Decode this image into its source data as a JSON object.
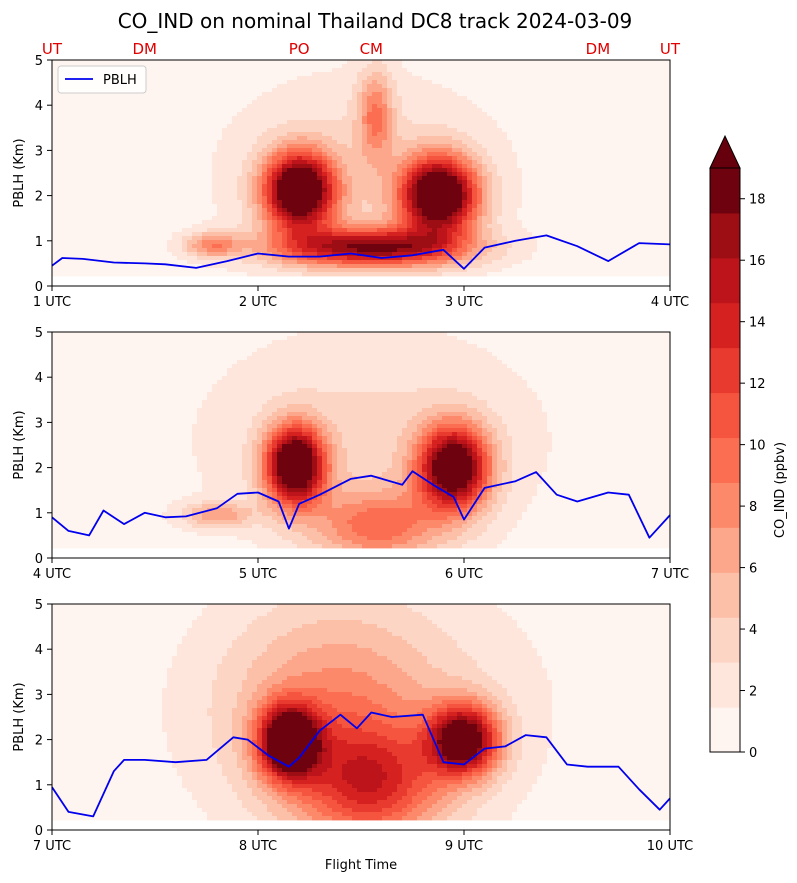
{
  "title": "CO_IND on nominal Thailand DC8 track 2024-03-09",
  "locations": [
    {
      "label": "UT",
      "time": 1.0
    },
    {
      "label": "DM",
      "time": 1.45
    },
    {
      "label": "PO",
      "time": 2.2
    },
    {
      "label": "CM",
      "time": 2.55
    },
    {
      "label": "DM",
      "time": 3.65
    },
    {
      "label": "UT",
      "time": 4.0
    }
  ],
  "colorbar": {
    "label": "CO_IND (ppbv)",
    "ticks": [
      "0",
      "2",
      "4",
      "6",
      "8",
      "10",
      "12",
      "14",
      "16",
      "18"
    ],
    "min": 0,
    "max": 19,
    "extend": "max"
  },
  "legend": {
    "label": "PBLH",
    "color": "#0000ee"
  },
  "xlabel": "Flight Time",
  "ylabel": "PBLH (Km)",
  "chart_data": [
    {
      "type": "heatmap",
      "xlim": [
        1,
        4
      ],
      "ylim": [
        0,
        5
      ],
      "xticks": [
        "1 UTC",
        "2 UTC",
        "3 UTC",
        "4 UTC"
      ],
      "yticks": [
        "0",
        "1",
        "2",
        "3",
        "4",
        "5"
      ],
      "ylabel": "PBLH (Km)",
      "legend_position": "top-left",
      "pblh_series": {
        "name": "PBLH",
        "x": [
          1.0,
          1.05,
          1.15,
          1.3,
          1.45,
          1.55,
          1.7,
          1.85,
          2.0,
          2.15,
          2.3,
          2.45,
          2.6,
          2.75,
          2.9,
          3.0,
          3.1,
          3.25,
          3.4,
          3.55,
          3.7,
          3.85,
          4.0
        ],
        "y": [
          0.45,
          0.62,
          0.6,
          0.52,
          0.5,
          0.48,
          0.4,
          0.55,
          0.72,
          0.65,
          0.65,
          0.72,
          0.62,
          0.68,
          0.8,
          0.38,
          0.85,
          1.0,
          1.12,
          0.88,
          0.55,
          0.95,
          0.92
        ]
      },
      "blobs": [
        {
          "x": 2.2,
          "y": 2.1,
          "sx": 0.12,
          "sy": 0.6,
          "v": 22
        },
        {
          "x": 2.88,
          "y": 2.0,
          "sx": 0.13,
          "sy": 0.6,
          "v": 22
        },
        {
          "x": 2.55,
          "y": 0.85,
          "sx": 0.32,
          "sy": 0.3,
          "v": 16
        },
        {
          "x": 2.57,
          "y": 3.8,
          "sx": 0.06,
          "sy": 0.7,
          "v": 7
        },
        {
          "x": 1.78,
          "y": 0.9,
          "sx": 0.1,
          "sy": 0.2,
          "v": 7
        },
        {
          "x": 2.5,
          "y": 2.5,
          "sx": 0.5,
          "sy": 1.6,
          "v": 3
        }
      ]
    },
    {
      "type": "heatmap",
      "xlim": [
        4,
        7
      ],
      "ylim": [
        0,
        5
      ],
      "xticks": [
        "4 UTC",
        "5 UTC",
        "6 UTC",
        "7 UTC"
      ],
      "yticks": [
        "0",
        "1",
        "2",
        "3",
        "4",
        "5"
      ],
      "ylabel": "PBLH (Km)",
      "pblh_series": {
        "name": "PBLH",
        "x": [
          4.0,
          4.08,
          4.18,
          4.25,
          4.35,
          4.45,
          4.55,
          4.65,
          4.8,
          4.9,
          5.0,
          5.1,
          5.15,
          5.2,
          5.3,
          5.45,
          5.55,
          5.7,
          5.75,
          5.85,
          5.95,
          6.0,
          6.1,
          6.25,
          6.35,
          6.45,
          6.55,
          6.7,
          6.8,
          6.9,
          7.0
        ],
        "y": [
          0.9,
          0.6,
          0.5,
          1.05,
          0.75,
          1.0,
          0.9,
          0.92,
          1.1,
          1.42,
          1.45,
          1.25,
          0.65,
          1.2,
          1.4,
          1.75,
          1.82,
          1.62,
          1.92,
          1.62,
          1.35,
          0.85,
          1.55,
          1.7,
          1.9,
          1.4,
          1.25,
          1.45,
          1.4,
          0.45,
          0.95
        ]
      },
      "blobs": [
        {
          "x": 5.18,
          "y": 2.05,
          "sx": 0.1,
          "sy": 0.6,
          "v": 22
        },
        {
          "x": 5.95,
          "y": 2.0,
          "sx": 0.12,
          "sy": 0.65,
          "v": 20
        },
        {
          "x": 5.58,
          "y": 0.7,
          "sx": 0.22,
          "sy": 0.55,
          "v": 8
        },
        {
          "x": 4.8,
          "y": 0.95,
          "sx": 0.12,
          "sy": 0.2,
          "v": 6
        },
        {
          "x": 5.55,
          "y": 2.6,
          "sx": 0.6,
          "sy": 1.8,
          "v": 3
        }
      ]
    },
    {
      "type": "heatmap",
      "xlim": [
        7,
        10
      ],
      "ylim": [
        0,
        5
      ],
      "xticks": [
        "7 UTC",
        "8 UTC",
        "9 UTC",
        "10 UTC"
      ],
      "yticks": [
        "0",
        "1",
        "2",
        "3",
        "4",
        "5"
      ],
      "ylabel": "PBLH (Km)",
      "xlabel": "Flight Time",
      "pblh_series": {
        "name": "PBLH",
        "x": [
          7.0,
          7.08,
          7.2,
          7.3,
          7.35,
          7.45,
          7.6,
          7.75,
          7.88,
          7.95,
          8.05,
          8.15,
          8.2,
          8.3,
          8.4,
          8.48,
          8.55,
          8.65,
          8.8,
          8.9,
          9.0,
          9.1,
          9.2,
          9.3,
          9.4,
          9.5,
          9.6,
          9.75,
          9.85,
          9.95,
          10.0
        ],
        "y": [
          0.95,
          0.4,
          0.3,
          1.3,
          1.55,
          1.55,
          1.5,
          1.55,
          2.05,
          2.0,
          1.65,
          1.4,
          1.6,
          2.2,
          2.55,
          2.25,
          2.6,
          2.5,
          2.55,
          1.5,
          1.45,
          1.8,
          1.85,
          2.1,
          2.05,
          1.45,
          1.4,
          1.4,
          0.9,
          0.45,
          0.7
        ]
      },
      "blobs": [
        {
          "x": 8.15,
          "y": 1.95,
          "sx": 0.1,
          "sy": 0.55,
          "v": 20
        },
        {
          "x": 9.0,
          "y": 2.0,
          "sx": 0.12,
          "sy": 0.55,
          "v": 18
        },
        {
          "x": 8.55,
          "y": 1.0,
          "sx": 0.25,
          "sy": 0.9,
          "v": 10
        },
        {
          "x": 8.35,
          "y": 2.6,
          "sx": 0.35,
          "sy": 1.6,
          "v": 5
        },
        {
          "x": 8.55,
          "y": 2.7,
          "sx": 0.6,
          "sy": 2.0,
          "v": 3
        }
      ]
    }
  ]
}
